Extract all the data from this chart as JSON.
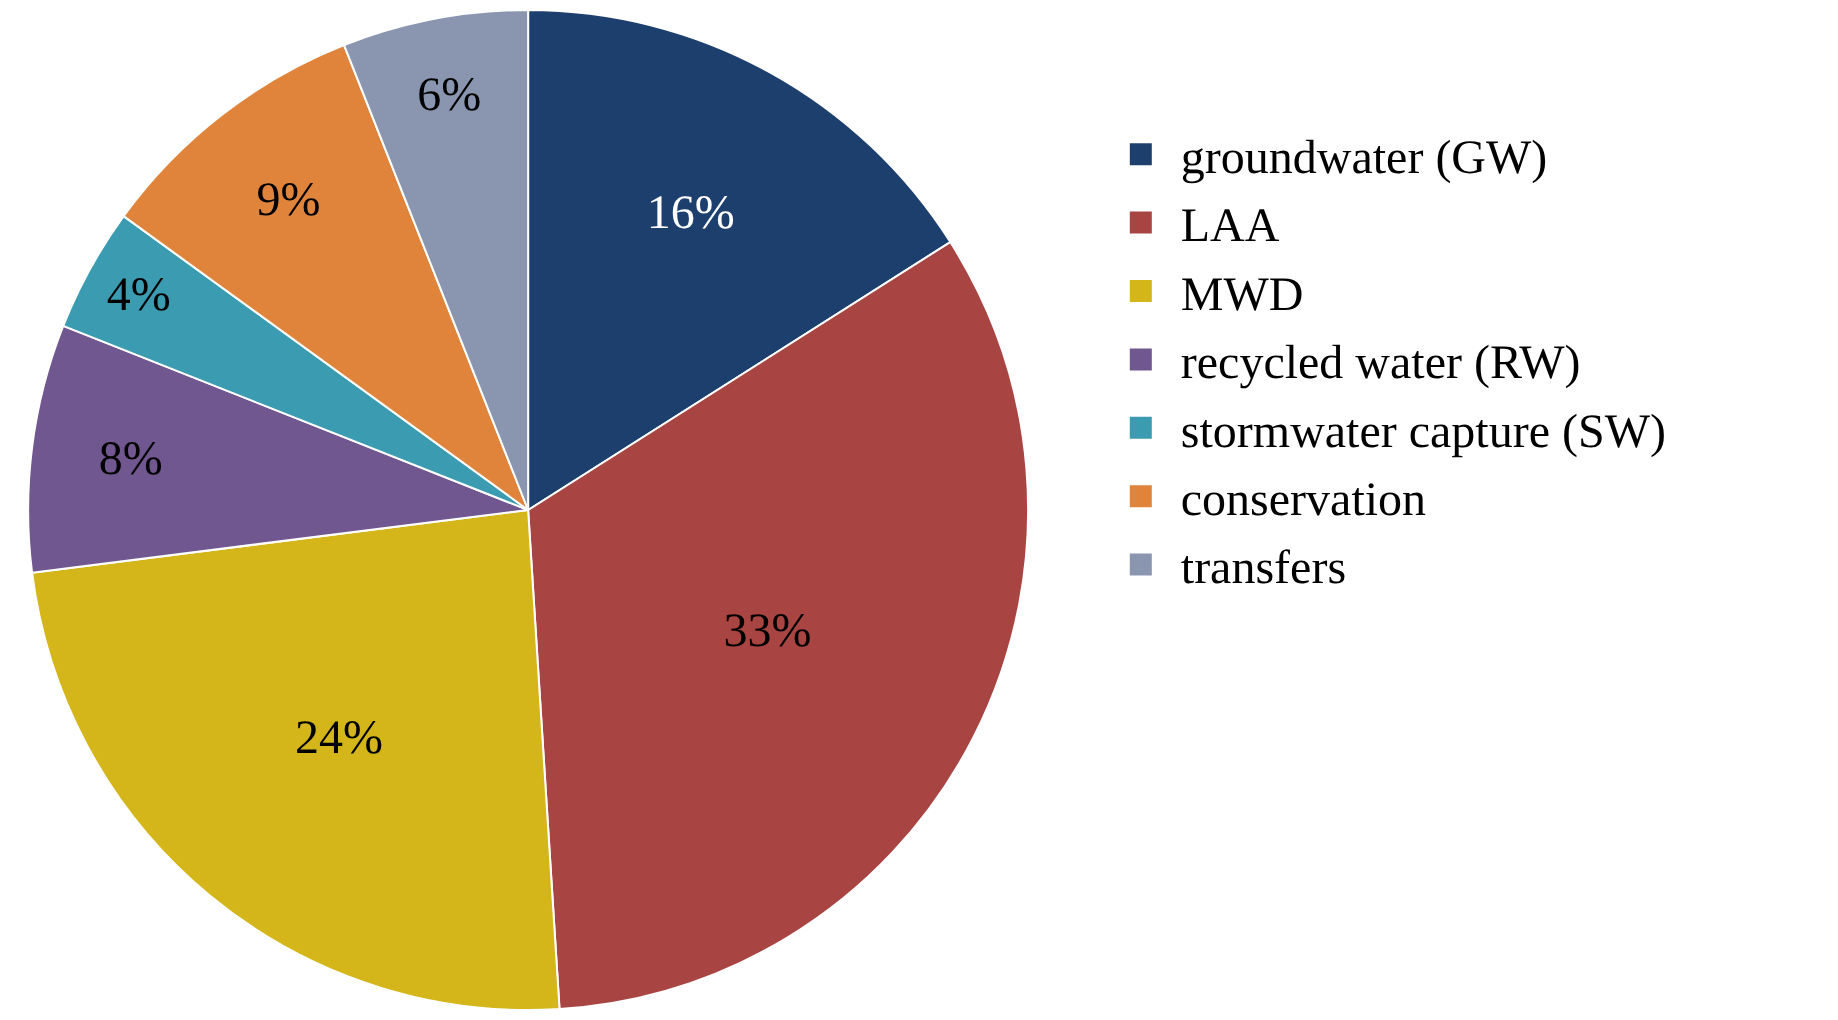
{
  "chart_data": {
    "type": "pie",
    "categories": [
      "groundwater (GW)",
      "LAA",
      "MWD",
      "recycled water (RW)",
      "stormwater capture (SW)",
      "conservation",
      "transfers"
    ],
    "values": [
      16,
      33,
      24,
      8,
      4,
      9,
      6
    ],
    "value_labels": [
      "16%",
      "33%",
      "24%",
      "8%",
      "4%",
      "9%",
      "6%"
    ],
    "colors": [
      "#1c3f6e",
      "#a84442",
      "#d4b61a",
      "#71578f",
      "#3b9bb0",
      "#e0843c",
      "#8a96b0"
    ],
    "legend": "right"
  }
}
